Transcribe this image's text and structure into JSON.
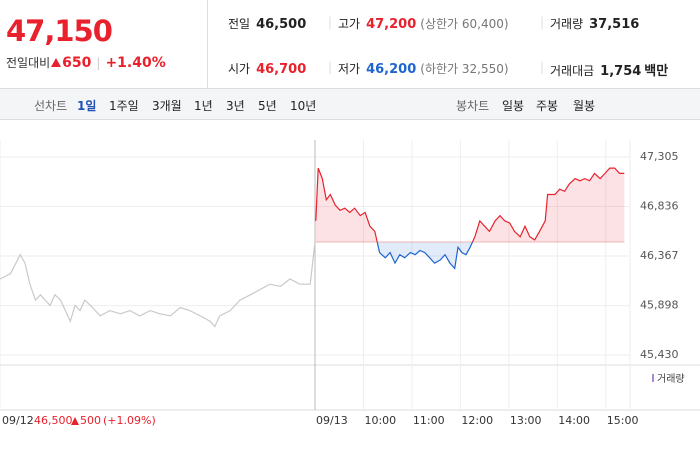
{
  "header": {
    "price": "47,150",
    "change_label": "전일대비",
    "change": "650",
    "change_pct": "+1.40%",
    "stats": [
      {
        "label": "전일",
        "value": "46,500"
      },
      {
        "label": "고가",
        "value": "47,200",
        "sub": "(상한가 60,400)"
      },
      {
        "label": "거래량",
        "value": "37,516"
      },
      {
        "label": "시가",
        "value": "46,700"
      },
      {
        "label": "저가",
        "value": "46,200",
        "sub": "(하한가 32,550)"
      },
      {
        "label": "거래대금",
        "value": "1,754",
        "unit": "백만"
      }
    ]
  },
  "tabs": {
    "line_label": "선차트",
    "line": [
      "1일",
      "1주일",
      "3개월",
      "1년",
      "3년",
      "5년",
      "10년"
    ],
    "candle_label": "봉차트",
    "candle": [
      "일봉",
      "주봉",
      "월봉"
    ]
  },
  "chart_data": {
    "type": "line",
    "ylim": [
      45430,
      47305
    ],
    "yticks": [
      {
        "value": 45430,
        "label": "45,430"
      },
      {
        "value": 45898,
        "label": "45,898"
      },
      {
        "value": 46367,
        "label": "46,367"
      },
      {
        "value": 46836,
        "label": "46,836"
      },
      {
        "value": 47305,
        "label": "47,305"
      }
    ],
    "xlim": [
      -390,
      390
    ],
    "xticks": [
      {
        "value": -390,
        "label": "09/12"
      },
      {
        "value": 0,
        "label": "09/13"
      },
      {
        "value": 60,
        "label": "10:00"
      },
      {
        "value": 120,
        "label": "11:00"
      },
      {
        "value": 180,
        "label": "12:00"
      },
      {
        "value": 240,
        "label": "13:00"
      },
      {
        "value": 300,
        "label": "14:00"
      },
      {
        "value": 360,
        "label": "15:00"
      }
    ],
    "baseline": 46500,
    "up_color": "#e8212c",
    "down_color": "#1e64d0",
    "volume_label": "거래량",
    "footer": {
      "close": "46,500",
      "change": "500",
      "pct": "(+1.09%)"
    },
    "series": [
      {
        "name": "09/12",
        "color": "#c9c9c9",
        "x": [
          -390,
          -377,
          -365,
          -359,
          -353,
          -346,
          -340,
          -334,
          -328,
          -322,
          -315,
          -309,
          -303,
          -297,
          -291,
          -285,
          -278,
          -272,
          -266,
          -254,
          -241,
          -229,
          -217,
          -204,
          -192,
          -179,
          -167,
          -155,
          -142,
          -130,
          -124,
          -118,
          -105,
          -93,
          -80,
          -68,
          -56,
          -43,
          -31,
          -19,
          -6,
          0
        ],
        "values": [
          46150,
          46200,
          46380,
          46300,
          46100,
          45950,
          46000,
          45950,
          45900,
          46000,
          45950,
          45850,
          45750,
          45900,
          45850,
          45950,
          45900,
          45850,
          45800,
          45850,
          45820,
          45850,
          45800,
          45850,
          45820,
          45800,
          45880,
          45850,
          45800,
          45750,
          45700,
          45800,
          45850,
          45950,
          46000,
          46050,
          46100,
          46080,
          46150,
          46100,
          46100,
          46500
        ]
      },
      {
        "name": "09/13",
        "x": [
          1,
          4,
          9,
          14,
          19,
          25,
          31,
          37,
          43,
          49,
          56,
          62,
          68,
          74,
          80,
          87,
          93,
          99,
          105,
          111,
          118,
          124,
          130,
          136,
          142,
          148,
          155,
          161,
          167,
          173,
          177,
          182,
          187,
          192,
          198,
          204,
          210,
          216,
          223,
          229,
          235,
          241,
          247,
          254,
          260,
          266,
          272,
          278,
          285,
          288,
          297,
          303,
          309,
          315,
          322,
          328,
          334,
          340,
          346,
          353,
          359,
          365,
          371,
          377,
          383
        ],
        "values": [
          46700,
          47200,
          47100,
          46900,
          46950,
          46850,
          46800,
          46820,
          46780,
          46820,
          46750,
          46780,
          46650,
          46600,
          46400,
          46350,
          46400,
          46300,
          46380,
          46350,
          46400,
          46380,
          46420,
          46400,
          46350,
          46300,
          46330,
          46380,
          46300,
          46250,
          46450,
          46400,
          46380,
          46450,
          46550,
          46700,
          46650,
          46600,
          46700,
          46750,
          46700,
          46680,
          46600,
          46550,
          46650,
          46550,
          46520,
          46600,
          46700,
          46950,
          46950,
          47000,
          46980,
          47050,
          47100,
          47080,
          47100,
          47080,
          47150,
          47100,
          47150,
          47200,
          47200,
          47150,
          47150
        ]
      }
    ]
  }
}
